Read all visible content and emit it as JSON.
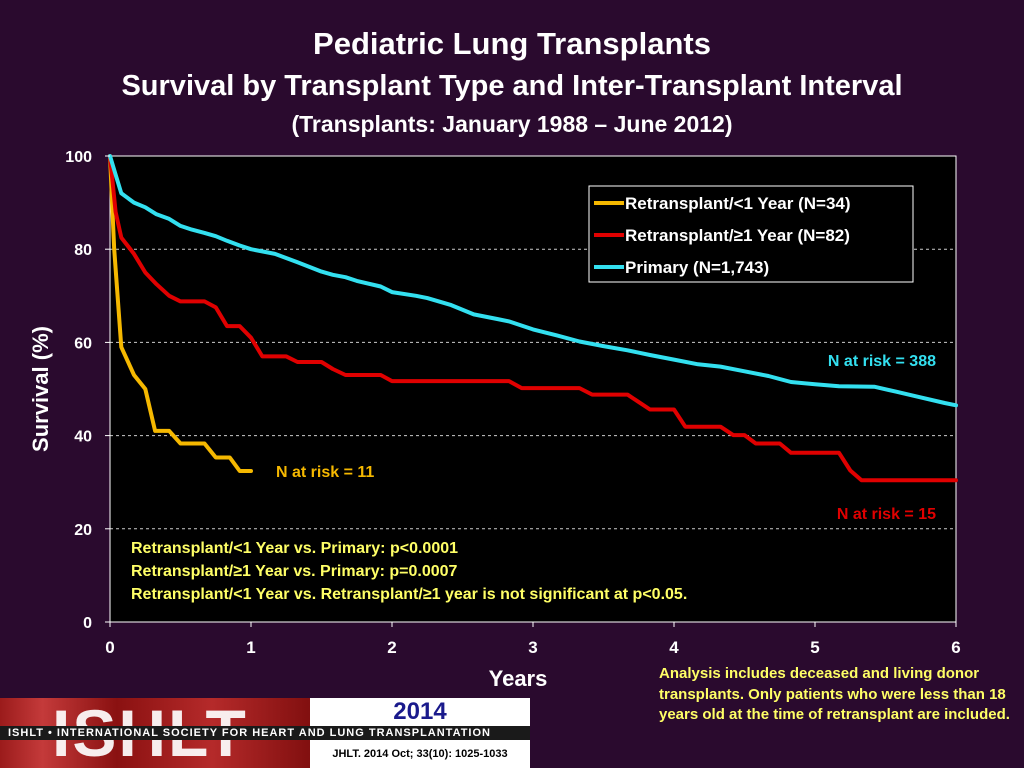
{
  "titles": {
    "line1": "Pediatric Lung Transplants",
    "line2": "Survival by Transplant Type and Inter-Transplant Interval",
    "line3": "(Transplants: January 1988 – June 2012)"
  },
  "chart_data": {
    "type": "line",
    "xlabel": "Years",
    "ylabel": "Survival (%)",
    "xlim": [
      0,
      6
    ],
    "ylim": [
      0,
      100
    ],
    "x_ticks": [
      "0",
      "1",
      "2",
      "3",
      "4",
      "5",
      "6"
    ],
    "y_ticks": [
      "0",
      "20",
      "40",
      "60",
      "80",
      "100"
    ],
    "grid": "horizontal-dashed",
    "legend_position": "top-right",
    "series": [
      {
        "name": "Retransplant/<1 Year (N=34)",
        "color": "#f5b800",
        "points": [
          [
            0,
            100
          ],
          [
            0.03,
            80
          ],
          [
            0.08,
            59
          ],
          [
            0.17,
            53
          ],
          [
            0.25,
            50
          ],
          [
            0.32,
            41
          ],
          [
            0.42,
            41
          ],
          [
            0.5,
            38.3
          ],
          [
            0.67,
            38.3
          ],
          [
            0.75,
            35.3
          ],
          [
            0.85,
            35.3
          ],
          [
            0.92,
            32.4
          ],
          [
            1.0,
            32.4
          ]
        ]
      },
      {
        "name": "Retransplant/≥1 Year (N=82)",
        "color": "#e00000",
        "points": [
          [
            0,
            100
          ],
          [
            0.04,
            88
          ],
          [
            0.08,
            82.5
          ],
          [
            0.17,
            79
          ],
          [
            0.25,
            75
          ],
          [
            0.33,
            72.5
          ],
          [
            0.42,
            70
          ],
          [
            0.5,
            68.8
          ],
          [
            0.67,
            68.8
          ],
          [
            0.75,
            67.5
          ],
          [
            0.83,
            63.5
          ],
          [
            0.92,
            63.5
          ],
          [
            1.0,
            61
          ],
          [
            1.08,
            57
          ],
          [
            1.25,
            57
          ],
          [
            1.33,
            55.8
          ],
          [
            1.5,
            55.8
          ],
          [
            1.58,
            54.3
          ],
          [
            1.67,
            53
          ],
          [
            1.92,
            53
          ],
          [
            2.0,
            51.7
          ],
          [
            2.83,
            51.7
          ],
          [
            2.92,
            50.2
          ],
          [
            3.33,
            50.2
          ],
          [
            3.42,
            48.8
          ],
          [
            3.67,
            48.8
          ],
          [
            3.83,
            45.6
          ],
          [
            4.0,
            45.6
          ],
          [
            4.08,
            41.9
          ],
          [
            4.33,
            41.9
          ],
          [
            4.42,
            40.1
          ],
          [
            4.5,
            40.1
          ],
          [
            4.58,
            38.3
          ],
          [
            4.75,
            38.3
          ],
          [
            4.83,
            36.3
          ],
          [
            5.17,
            36.3
          ],
          [
            5.25,
            32.5
          ],
          [
            5.33,
            30.4
          ],
          [
            6.0,
            30.4
          ]
        ]
      },
      {
        "name": "Primary (N=1,743)",
        "color": "#33e0f0",
        "points": [
          [
            0,
            100
          ],
          [
            0.04,
            96
          ],
          [
            0.08,
            92
          ],
          [
            0.17,
            90
          ],
          [
            0.25,
            89
          ],
          [
            0.33,
            87.5
          ],
          [
            0.42,
            86.5
          ],
          [
            0.5,
            85
          ],
          [
            0.58,
            84.2
          ],
          [
            0.67,
            83.5
          ],
          [
            0.75,
            82.8
          ],
          [
            0.83,
            81.8
          ],
          [
            0.92,
            80.8
          ],
          [
            1.0,
            80
          ],
          [
            1.17,
            79
          ],
          [
            1.33,
            77.2
          ],
          [
            1.5,
            75.2
          ],
          [
            1.58,
            74.5
          ],
          [
            1.67,
            74
          ],
          [
            1.75,
            73.2
          ],
          [
            1.92,
            72
          ],
          [
            2.0,
            70.8
          ],
          [
            2.17,
            70
          ],
          [
            2.25,
            69.5
          ],
          [
            2.42,
            68
          ],
          [
            2.58,
            66
          ],
          [
            2.75,
            65
          ],
          [
            2.83,
            64.5
          ],
          [
            3.0,
            62.8
          ],
          [
            3.17,
            61.5
          ],
          [
            3.33,
            60.2
          ],
          [
            3.5,
            59.2
          ],
          [
            3.67,
            58.3
          ],
          [
            3.83,
            57.3
          ],
          [
            4.0,
            56.3
          ],
          [
            4.17,
            55.3
          ],
          [
            4.33,
            54.8
          ],
          [
            4.5,
            53.8
          ],
          [
            4.67,
            52.8
          ],
          [
            4.83,
            51.5
          ],
          [
            5.0,
            51
          ],
          [
            5.17,
            50.6
          ],
          [
            5.42,
            50.5
          ],
          [
            5.58,
            49.4
          ],
          [
            5.75,
            48.2
          ],
          [
            5.92,
            47
          ],
          [
            6.0,
            46.5
          ]
        ]
      }
    ],
    "annotations": [
      {
        "text": "N at risk = 388",
        "color": "#33e0f0"
      },
      {
        "text": "N at risk = 11",
        "color": "#f5b800"
      },
      {
        "text": "N at risk = 15",
        "color": "#e00000"
      }
    ],
    "stats_text": [
      "Retransplant/<1 Year vs. Primary: p<0.0001",
      "Retransplant/≥1 Year vs. Primary: p=0.0007",
      "Retransplant/<1 Year vs. Retransplant/≥1 year is not significant at p<0.05."
    ]
  },
  "footnote": "Analysis includes deceased and living donor transplants. Only patients who were less than 18 years old at the time of retransplant are included.",
  "logo": {
    "word": "ISHLT",
    "year": "2014",
    "strip": "ISHLT • INTERNATIONAL SOCIETY FOR HEART AND LUNG TRANSPLANTATION",
    "citation": "JHLT. 2014 Oct; 33(10): 1025-1033"
  }
}
